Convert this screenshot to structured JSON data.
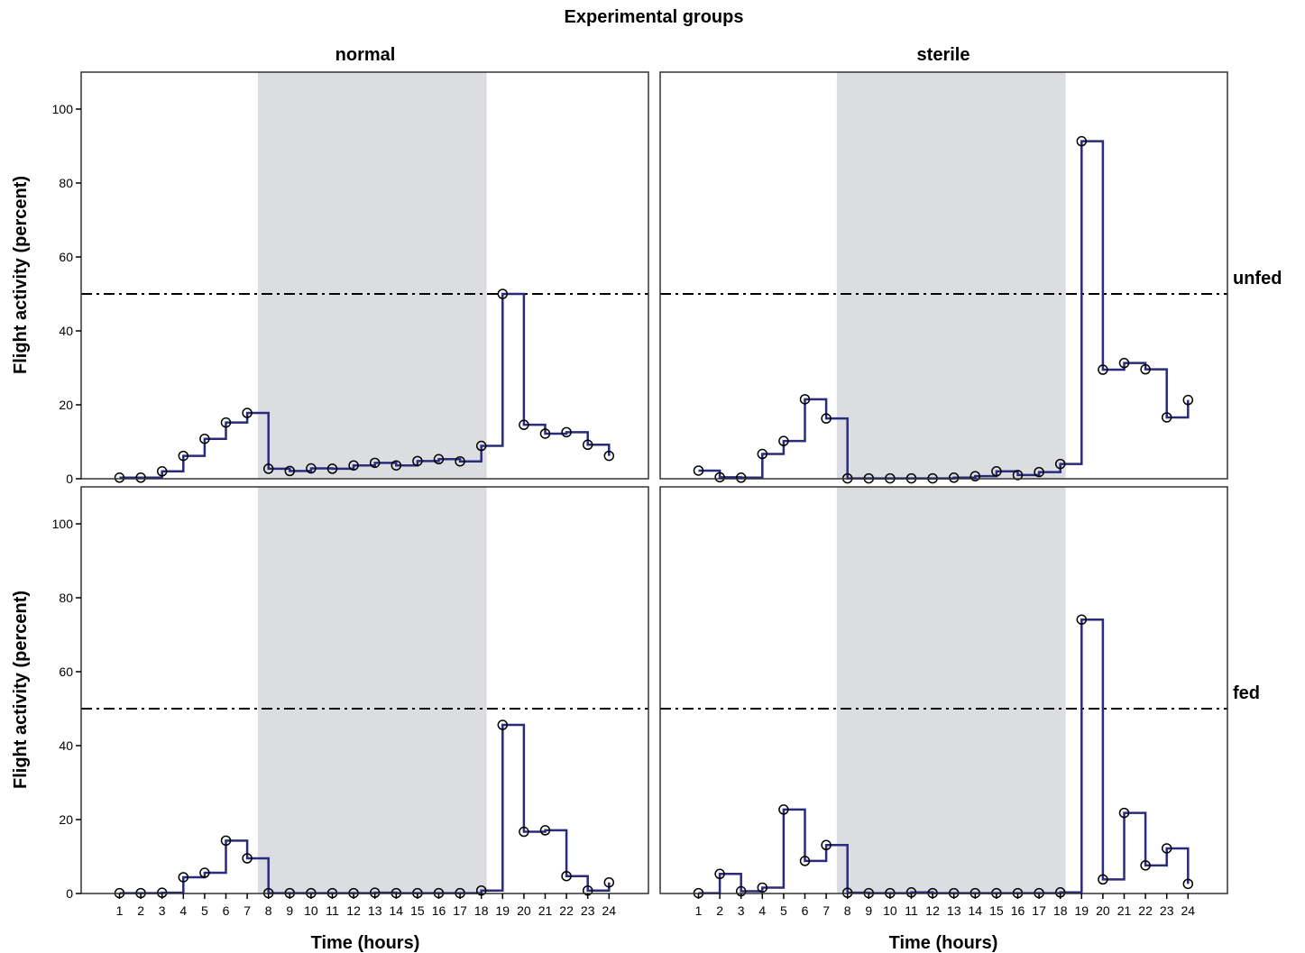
{
  "chart_data": {
    "type": "line",
    "subtype": "step",
    "title": "Experimental groups",
    "columns": [
      "normal",
      "sterile"
    ],
    "rows": [
      "unfed",
      "fed"
    ],
    "xlabel": "Time (hours)",
    "ylabel": "Flight activity (percent)",
    "x": [
      1,
      2,
      3,
      4,
      5,
      6,
      7,
      8,
      9,
      10,
      11,
      12,
      13,
      14,
      15,
      16,
      17,
      18,
      19,
      20,
      21,
      22,
      23,
      24
    ],
    "ylim": [
      0,
      110
    ],
    "yticks": [
      0,
      20,
      40,
      60,
      80,
      100
    ],
    "reference_line": 50,
    "shaded_x_range": [
      7.5,
      18.25
    ],
    "colors": {
      "line": "#2b2b7c",
      "shade": "#dcdde0",
      "marker": "#000000"
    },
    "panels": [
      {
        "column": "normal",
        "row": "unfed",
        "values": [
          0.3,
          0.3,
          2,
          6.2,
          10.8,
          15.2,
          17.8,
          2.7,
          2.1,
          2.8,
          2.7,
          3.6,
          4.3,
          3.6,
          4.8,
          5.3,
          4.7,
          8.9,
          50,
          14.6,
          12.2,
          12.6,
          9.2,
          6.2
        ]
      },
      {
        "column": "sterile",
        "row": "unfed",
        "values": [
          2.2,
          0.4,
          0.3,
          6.7,
          10.2,
          21.5,
          16.3,
          0.1,
          0.1,
          0.1,
          0.1,
          0.1,
          0.3,
          0.7,
          2,
          1,
          1.8,
          4,
          91.3,
          29.5,
          31.3,
          29.6,
          16.6,
          21.3
        ]
      },
      {
        "column": "normal",
        "row": "fed",
        "values": [
          0.1,
          0.1,
          0.2,
          4.4,
          5.6,
          14.3,
          9.5,
          0.1,
          0.1,
          0.1,
          0.1,
          0.1,
          0.2,
          0.1,
          0.1,
          0.1,
          0.1,
          0.8,
          45.6,
          16.7,
          17.1,
          4.7,
          0.8,
          3
        ]
      },
      {
        "column": "sterile",
        "row": "fed",
        "values": [
          0.1,
          5.3,
          0.6,
          1.6,
          22.7,
          8.8,
          13.1,
          0.2,
          0.1,
          0.1,
          0.3,
          0.1,
          0.1,
          0.1,
          0.1,
          0.1,
          0.1,
          0.3,
          74.1,
          3.8,
          21.8,
          7.6,
          12.2,
          2.6
        ]
      }
    ]
  }
}
